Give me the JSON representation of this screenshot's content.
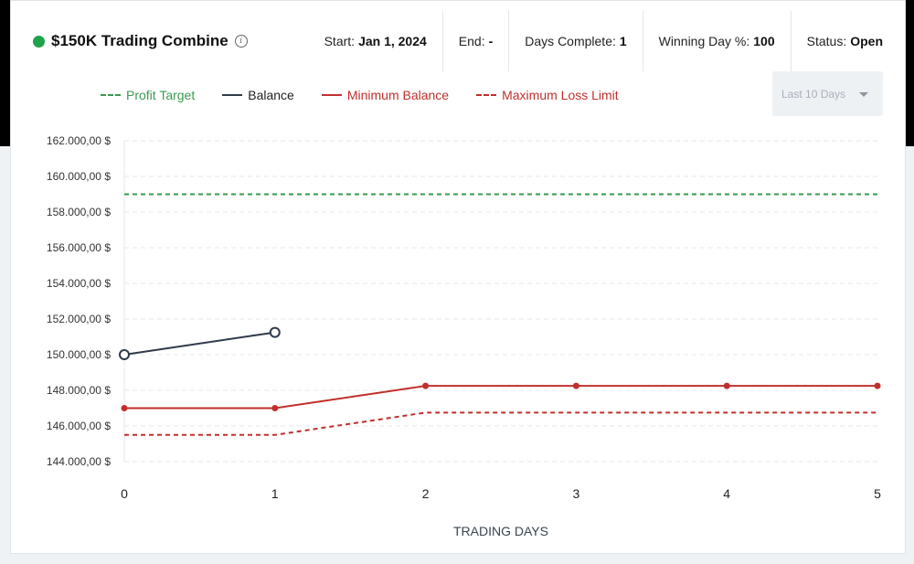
{
  "header": {
    "title": "$150K Trading Combine",
    "start_label": "Start:",
    "start_value": "Jan 1, 2024",
    "end_label": "End:",
    "end_value": "-",
    "days_label": "Days Complete:",
    "days_value": "1",
    "winning_label": "Winning Day %:",
    "winning_value": "100",
    "status_label": "Status:",
    "status_value": "Open",
    "status_color": "#1fa34a",
    "info_icon": "info-icon"
  },
  "range_select": {
    "value": "Last 10 Days"
  },
  "chart_data": {
    "type": "line",
    "xlabel": "TRADING DAYS",
    "ylabel": "",
    "x": [
      0,
      1,
      2,
      3,
      4,
      5
    ],
    "xlim": [
      0,
      5
    ],
    "ylim": [
      144000,
      162000
    ],
    "y_ticks": [
      144000,
      146000,
      148000,
      150000,
      152000,
      154000,
      156000,
      158000,
      160000,
      162000
    ],
    "y_tick_labels": [
      "144.000,00 $",
      "146.000,00 $",
      "148.000,00 $",
      "150.000,00 $",
      "152.000,00 $",
      "154.000,00 $",
      "156.000,00 $",
      "158.000,00 $",
      "160.000,00 $",
      "162.000,00 $"
    ],
    "x_tick_labels": [
      "0",
      "1",
      "2",
      "3",
      "4",
      "5"
    ],
    "grid": true,
    "legend_position": "top-left",
    "series": [
      {
        "name": "Profit Target",
        "color": "#3a9a4f",
        "style": "dashed",
        "markers": false,
        "x": [
          0,
          5
        ],
        "values": [
          159000,
          159000
        ]
      },
      {
        "name": "Balance",
        "color": "#2f3a4a",
        "style": "solid",
        "markers": "hollow",
        "x": [
          0,
          1
        ],
        "values": [
          150000,
          151250
        ]
      },
      {
        "name": "Minimum Balance",
        "color": "#c0302b",
        "style": "solid",
        "markers": "filled",
        "x": [
          0,
          1,
          2,
          3,
          4,
          5
        ],
        "values": [
          147000,
          147000,
          148250,
          148250,
          148250,
          148250
        ]
      },
      {
        "name": "Maximum Loss Limit",
        "color": "#c0302b",
        "style": "dashed",
        "markers": false,
        "x": [
          0,
          1,
          2,
          3,
          4,
          5
        ],
        "values": [
          145500,
          145500,
          146750,
          146750,
          146750,
          146750
        ]
      }
    ]
  }
}
